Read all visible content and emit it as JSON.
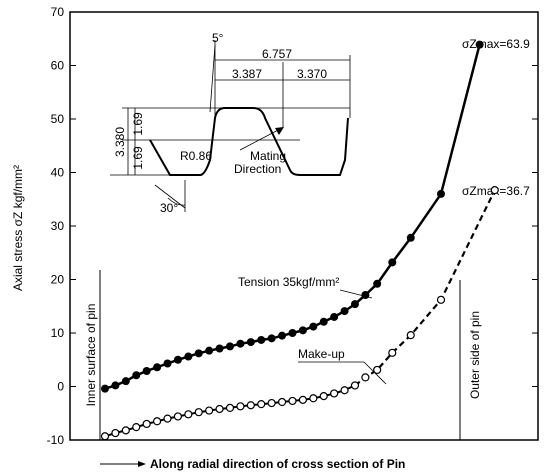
{
  "chart_data": {
    "type": "line",
    "ylabel": "Axial stress σZ kgf/mm²",
    "xlabel": "Along radial direction of cross section of Pin",
    "ylim": [
      -10,
      70
    ],
    "yticks": [
      -10,
      0,
      10,
      20,
      30,
      40,
      50,
      60,
      70
    ],
    "grid": false,
    "x_units": "normalized radial position (inner surface 0 to outer side 1)",
    "series": [
      {
        "name": "Tension 35kgf/mm²",
        "style": "solid, filled markers",
        "x": [
          0,
          0.031,
          0.062,
          0.093,
          0.124,
          0.155,
          0.186,
          0.217,
          0.248,
          0.279,
          0.31,
          0.341,
          0.372,
          0.403,
          0.434,
          0.465,
          0.496,
          0.527,
          0.558,
          0.589,
          0.62,
          0.651,
          0.682,
          0.713,
          0.744,
          0.775,
          0.81,
          0.855,
          0.91,
          1.0
        ],
        "values": [
          -0.4,
          0.2,
          1.0,
          2.1,
          2.9,
          3.6,
          4.3,
          5.0,
          5.6,
          6.2,
          6.7,
          7.1,
          7.5,
          8.0,
          8.3,
          8.7,
          9.0,
          9.5,
          10.0,
          10.5,
          11.2,
          12.1,
          13.0,
          14.1,
          15.4,
          17.1,
          19.2,
          23.2,
          27.8,
          36.0
        ]
      },
      {
        "name": "Make-up",
        "style": "solid then dashed, hollow markers",
        "x": [
          0,
          0.031,
          0.062,
          0.093,
          0.124,
          0.155,
          0.186,
          0.217,
          0.248,
          0.279,
          0.31,
          0.341,
          0.372,
          0.403,
          0.434,
          0.465,
          0.496,
          0.527,
          0.558,
          0.589,
          0.62,
          0.651,
          0.682,
          0.713,
          0.744,
          0.775,
          0.81,
          0.855,
          0.91,
          1.0
        ],
        "values": [
          -9.3,
          -8.7,
          -8.2,
          -7.6,
          -7.0,
          -6.5,
          -6.0,
          -5.6,
          -5.2,
          -4.8,
          -4.5,
          -4.2,
          -4.0,
          -3.7,
          -3.5,
          -3.3,
          -3.1,
          -2.9,
          -2.7,
          -2.5,
          -2.2,
          -1.8,
          -1.3,
          -0.7,
          0.2,
          1.7,
          3.1,
          6.3,
          9.6,
          16.2
        ]
      }
    ],
    "extra_points": [
      {
        "series": "Tension 35kgf/mm²",
        "x": 1.115,
        "value": 63.9
      },
      {
        "series": "Make-up",
        "x": 1.16,
        "value": 36.7
      }
    ],
    "annotations": {
      "max_tension_label": "σZmax=63.9",
      "max_makeup_label": "σZmax=36.7",
      "tension_label": "Tension 35kgf/mm²",
      "makeup_label": "Make-up",
      "inner_surface": "Inner surface of pin",
      "outer_side": "Outer side of pin"
    },
    "inset": {
      "dim_angle_top": "5°",
      "dim_total": "6.757",
      "dim_left": "3.387",
      "dim_right": "3.370",
      "dim_height": "3.380",
      "dim_h1": "1.69",
      "dim_h2": "1.69",
      "radius": "R0.86",
      "mating": "Mating",
      "direction": "Direction",
      "angle_bottom": "30°"
    }
  }
}
